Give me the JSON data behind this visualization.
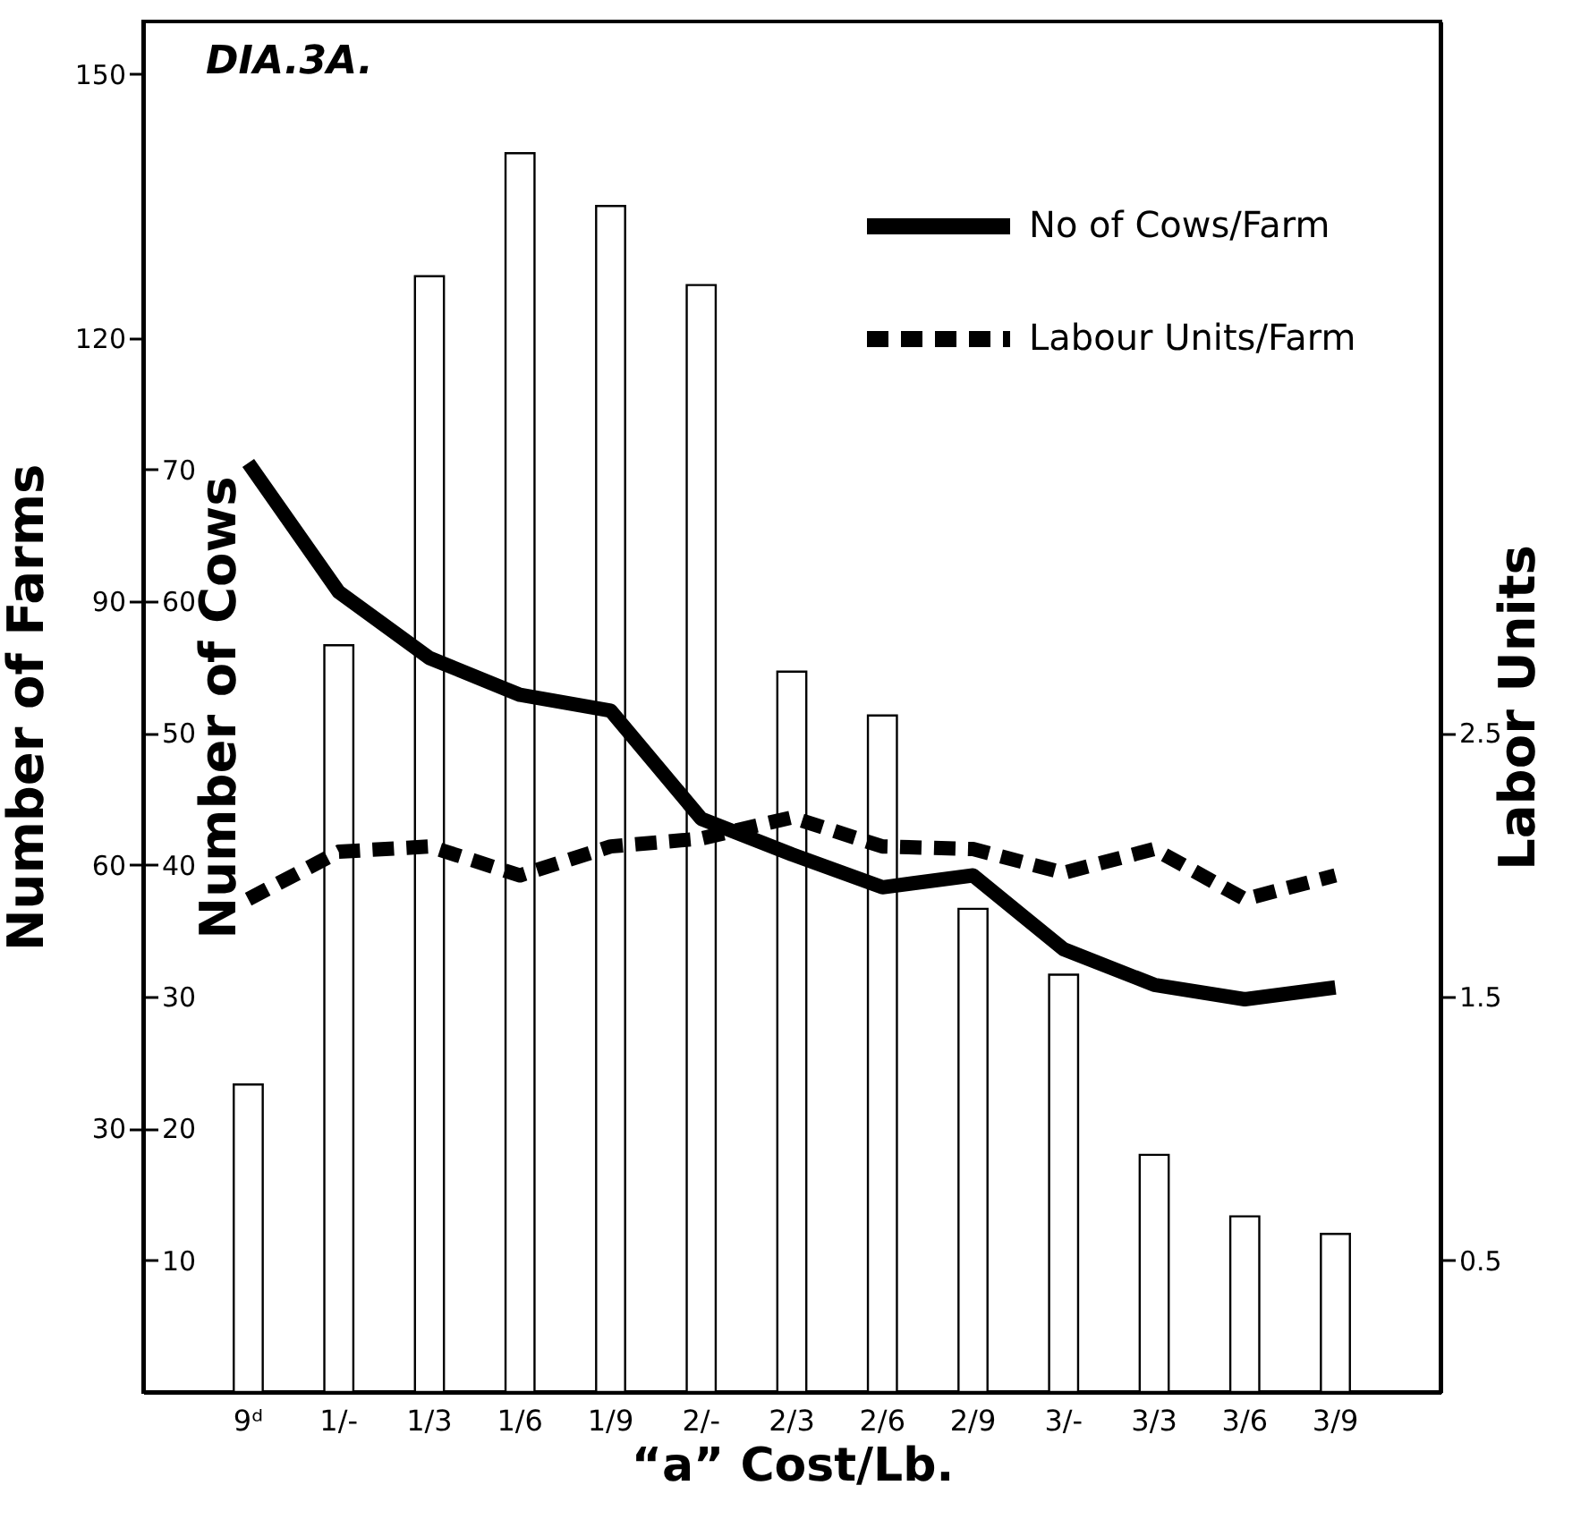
{
  "chart_data": {
    "type": "bar",
    "title": "DIA.3A.",
    "xlabel": "“a” Cost/Lb.",
    "ylabel": "Number of Farms",
    "y2label": "Number of Cows",
    "y3label": "Labor Units",
    "categories": [
      "9ᵈ",
      "1/-",
      "1/3",
      "1/6",
      "1/9",
      "2/-",
      "2/3",
      "2/6",
      "2/9",
      "3/-",
      "3/3",
      "3/6",
      "3/9"
    ],
    "series": [
      {
        "color": "#ffffff",
        "values": [
          35,
          85,
          127,
          141,
          135,
          126,
          82,
          77,
          55,
          47.5,
          27,
          20,
          18
        ]
      },
      {
        "type": "line",
        "name": "No of Cows/Farm",
        "color": "#000000",
        "axis": "y2",
        "line_style": "solid",
        "values": [
          70.5,
          60.7,
          55.7,
          52.9,
          51.7,
          43.5,
          40.8,
          38.3,
          39.2,
          33.6,
          30.9,
          29.8,
          30.7
        ]
      },
      {
        "type": "line",
        "name": "Labour Units/Farm",
        "color": "#000000",
        "axis": "y3",
        "line_style": "dashed",
        "values": [
          1.87,
          2.05,
          2.07,
          1.96,
          2.07,
          2.1,
          2.18,
          2.07,
          2.06,
          1.97,
          2.06,
          1.87,
          1.96
        ]
      }
    ],
    "ylim": [
      0,
      156
    ],
    "yticks": [
      30,
      60,
      90,
      120,
      150
    ],
    "y2lim": [
      0,
      104
    ],
    "y2ticks": [
      10,
      20,
      30,
      40,
      50,
      60,
      70
    ],
    "y3lim": [
      0,
      5.2
    ],
    "y3ticks": [
      0.5,
      1.5,
      2.5
    ],
    "legend": "top right",
    "grid": false,
    "marker": "none"
  }
}
